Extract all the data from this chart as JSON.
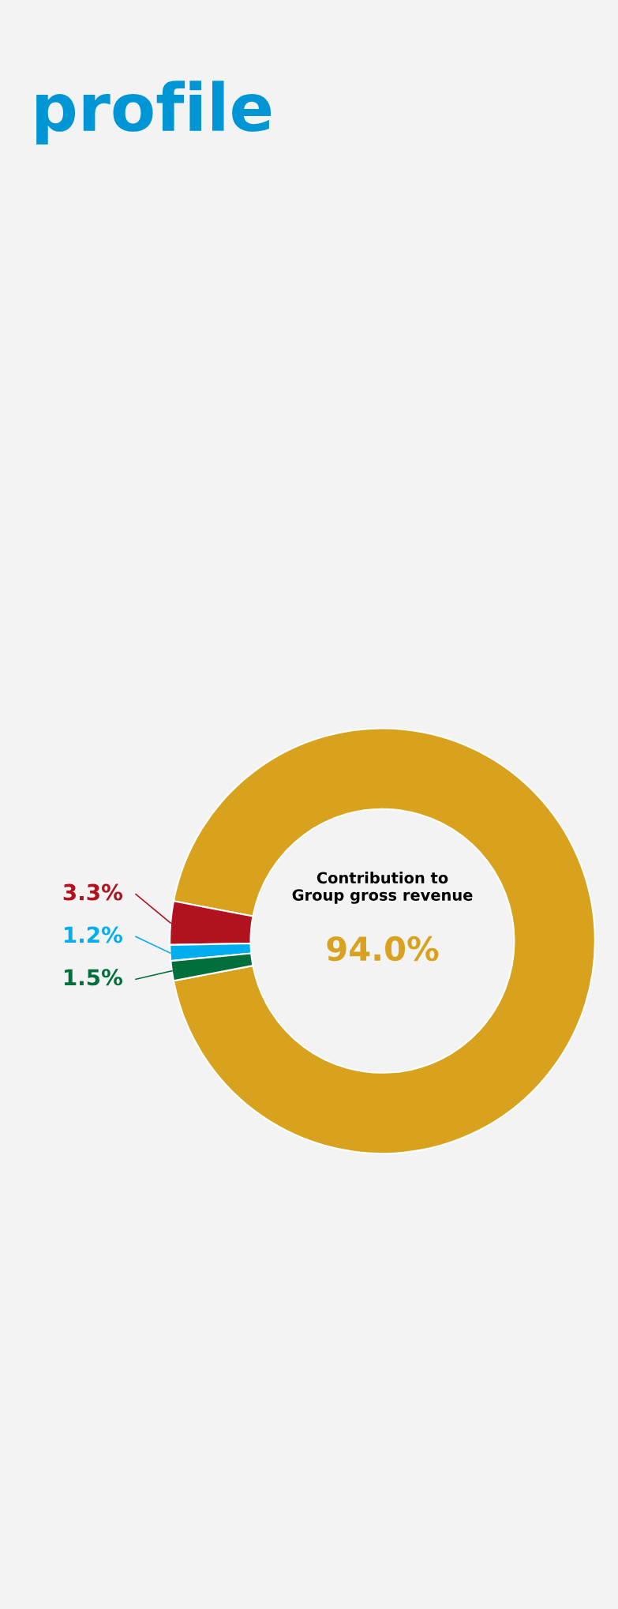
{
  "chart_data": {
    "type": "donut",
    "title": "profile",
    "annotations": [
      "Contribution to\nGroup gross revenue"
    ],
    "categories": [
      null,
      null,
      null,
      null
    ],
    "values": [
      94.0,
      3.3,
      1.2,
      1.5
    ],
    "colors": [
      "#d9a21e",
      "#b0121f",
      "#00aeef",
      "#006f3c"
    ],
    "value_labels": [
      "94.0%",
      "3.3%",
      "1.2%",
      "1.5%"
    ]
  }
}
